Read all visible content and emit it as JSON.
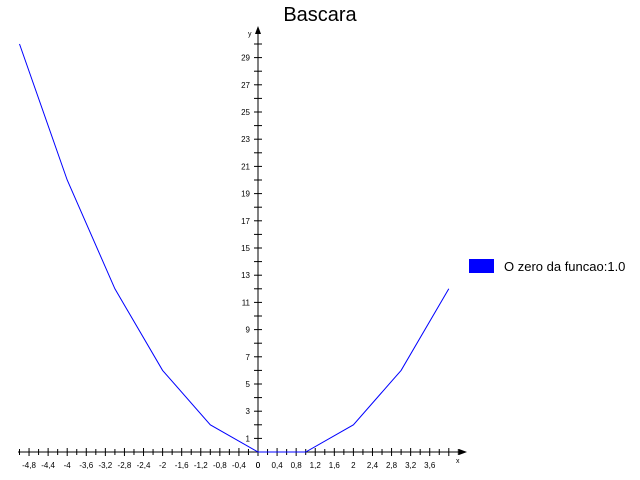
{
  "chart_data": {
    "type": "line",
    "title": "Bascara",
    "xlabel": "x",
    "ylabel": "y",
    "xlim": [
      -5.0,
      4.4
    ],
    "ylim": [
      0,
      30.5
    ],
    "x_tick_labels": [
      "-4,8",
      "-4,4",
      "-4",
      "-3,6",
      "-3,2",
      "-2,8",
      "-2,4",
      "-2",
      "-1,6",
      "-1,2",
      "-0,8",
      "-0,4",
      "0",
      "0,4",
      "0,8",
      "1,2",
      "1,6",
      "2",
      "2,4",
      "2,8",
      "3,2",
      "3,6"
    ],
    "x_tick_values": [
      -4.8,
      -4.4,
      -4.0,
      -3.6,
      -3.2,
      -2.8,
      -2.4,
      -2.0,
      -1.6,
      -1.2,
      -0.8,
      -0.4,
      0,
      0.4,
      0.8,
      1.2,
      1.6,
      2.0,
      2.4,
      2.8,
      3.2,
      3.6
    ],
    "y_tick_labels": [
      "1",
      "3",
      "5",
      "7",
      "9",
      "11",
      "13",
      "15",
      "17",
      "19",
      "21",
      "23",
      "25",
      "27",
      "29"
    ],
    "y_tick_values": [
      1,
      3,
      5,
      7,
      9,
      11,
      13,
      15,
      17,
      19,
      21,
      23,
      25,
      27,
      29
    ],
    "grid": false,
    "legend_position": "right",
    "series": [
      {
        "name": "O zero da funcao:1.0",
        "color": "#0000ff",
        "x": [
          -5,
          -4,
          -3,
          -2,
          -1,
          0,
          1,
          2,
          3,
          4
        ],
        "y": [
          30,
          20,
          12,
          6,
          2,
          0,
          0,
          2,
          6,
          12
        ]
      }
    ]
  }
}
